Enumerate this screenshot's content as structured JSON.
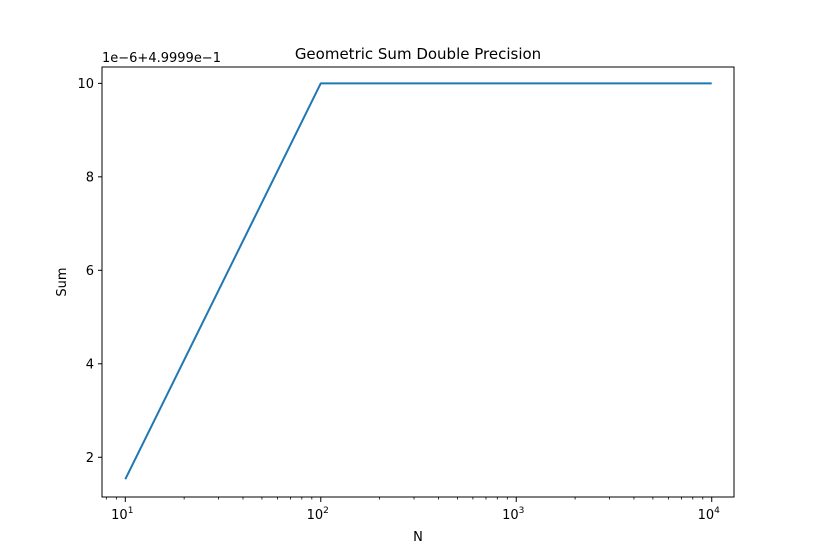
{
  "chart_data": {
    "type": "line",
    "title": "Geometric Sum Double Precision",
    "xlabel": "N",
    "ylabel": "Sum",
    "x_scale": "log",
    "xlim": [
      7.6,
      13000
    ],
    "ylim": [
      1.15,
      10.35
    ],
    "y_offset_label": "1e−6+4.9999e−1",
    "x_ticks": [
      {
        "value": 10,
        "base": "10",
        "exp": "1"
      },
      {
        "value": 100,
        "base": "10",
        "exp": "2"
      },
      {
        "value": 1000,
        "base": "10",
        "exp": "3"
      },
      {
        "value": 10000,
        "base": "10",
        "exp": "4"
      }
    ],
    "y_ticks": [
      {
        "value": 2,
        "label": "2"
      },
      {
        "value": 4,
        "label": "4"
      },
      {
        "value": 6,
        "label": "6"
      },
      {
        "value": 8,
        "label": "8"
      },
      {
        "value": 10,
        "label": "10"
      }
    ],
    "series": [
      {
        "color": "#1f77b4",
        "x": [
          10,
          100,
          1000,
          10000
        ],
        "y": [
          1.53,
          10.0,
          10.0,
          10.0
        ]
      }
    ],
    "grid": false,
    "legend": "none"
  }
}
